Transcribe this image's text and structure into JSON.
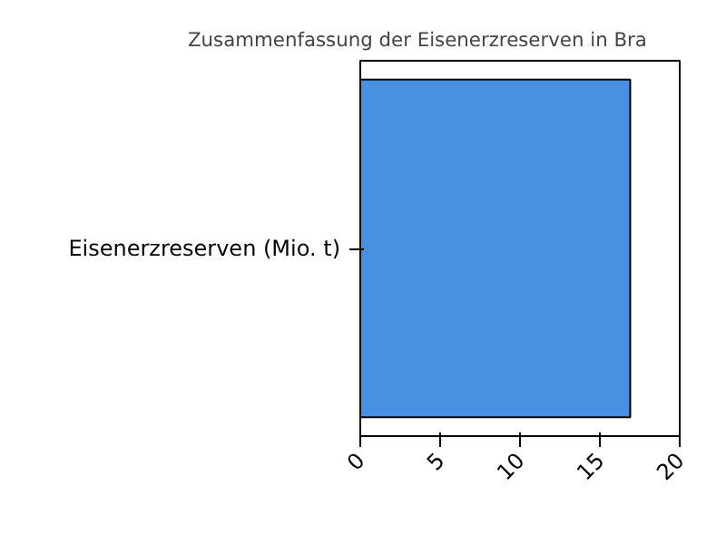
{
  "chart_data": {
    "type": "bar",
    "orientation": "horizontal",
    "title": "Zusammenfassung der Eisenerzreserven in Bra",
    "categories": [
      "Eisenerzreserven (Mio. t)"
    ],
    "values": [
      16.9
    ],
    "color": "#4a90e2",
    "xlim": [
      0,
      20
    ],
    "xticks": [
      0,
      5,
      10,
      15,
      20
    ],
    "grid": false
  }
}
